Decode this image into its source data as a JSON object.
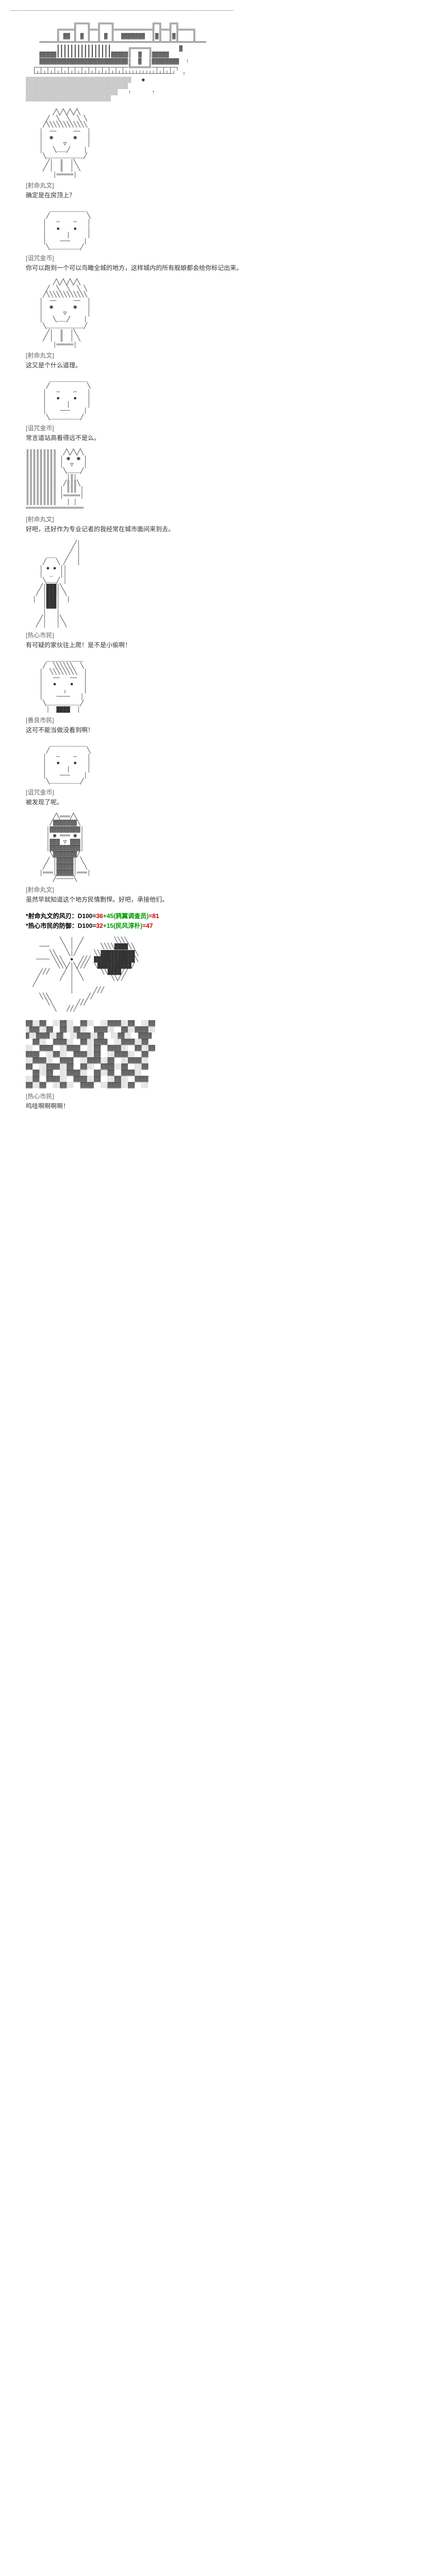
{
  "divider": "————————————————————————————————————————————————",
  "scenes": [
    {
      "art": "castle",
      "speaker": "[射命丸文]",
      "text": "确定是在房顶上？"
    },
    {
      "art": "coin1",
      "speaker": "[诅咒金币]",
      "text": "你可以跑到一个可以鸟瞰全城的地方，这样城内的所有舰娘都会给你标记出来。"
    },
    {
      "art": "aya1",
      "speaker": "[射命丸文]",
      "text": "这又是个什么道理。"
    },
    {
      "art": "coin2",
      "speaker": "[诅咒金币]",
      "text": "常言道站高看得远不是么。"
    },
    {
      "art": "aya2",
      "speaker": "[射命丸文]",
      "text": "好吧，还好作为专业记者的我经常在城市面间来到去。"
    },
    {
      "art": "citizen1",
      "speaker": "[热心市民]",
      "text": "有可疑的家伙往上爬！是不是小偷啊！"
    },
    {
      "art": "citizen2",
      "speaker": "[善良市民]",
      "text": "这可不能当做没看到啊！"
    },
    {
      "art": "coin3",
      "speaker": "[诅咒金币]",
      "text": "被发现了呢。"
    },
    {
      "art": "aya3",
      "speaker": "[射命丸文]",
      "text": "虽然早就知道这个地方民情剽悍。好吧，承接他们。"
    },
    {
      "art": "wind1",
      "speaker": "",
      "text": ""
    },
    {
      "art": "wind2",
      "speaker": "[热心市民]",
      "text": "呜哇啊啊啊啊！"
    }
  ],
  "rolls": [
    {
      "label": "*射命丸文的风刃：D100=",
      "base": "36",
      "mod": "+45(鸦翼调查员)",
      "result": "=81",
      "baseColor": "#cc0000",
      "modColor": "#009900",
      "resultColor": "#cc0000"
    },
    {
      "label": "*热心市民的防御：D100=",
      "base": "32",
      "mod": "+15(民风淳朴)",
      "result": "=47",
      "baseColor": "#cc0000",
      "modColor": "#009900",
      "resultColor": "#cc0000"
    }
  ],
  "ascii": {
    "castle": "              ╔═══╗  ╔═══╗           ╔═╗  ╔═╗\n         ╔════╣   ╠══╣   ╠═══════════╣ ╠══╣ ╠════╗\n         ║ ▓▓ ║ ▓ ║  ║ ▓ ║  ▓▓▓▓▓▓▓  ║▓║  ║▓║    ║\n    ═════╩════╩═══╩══╩═══╩═══════════╩═╩══╩═╩════╩═══\n         ┃┃┃┃┃┃┃┃┃┃┃┃┃┃┃┃     ╔═════╗        ▓\n    ▓▓▓▓▓┃┃┃┃┃┃┃┃┃┃┃┃┃┃┃┃▓▓▓▓▓║  ▓  ║▓▓▓▓▓\n    ▓▓▓▓▓▓▓▓▓▓▓▓▓▓▓▓▓▓▓▓▓▓▓▓▓▓║  ▓  ║▓▓▓▓▓▓▓▓  ↑\n  ┌─┬─┬─┬─┬─┬─┬─┬─┬─┬─┬─┬─┬─┬─╚═════╝─┬─┬─┬─┐\n  └┴┴┴┴┴┴┴┴┴┴┴┴┴┴┴┴┴┴┴┴┴┴┴┴┴┴┴┴┴┴┴┴┴┴┴┴┴┴┴┴┘  ↑\n▒▒▒▒▒▒▒▒▒▒▒▒▒▒▒▒▒▒▒▒▒▒▒▒▒▒▒▒▒▒▒   ◆\n▒▒▒▒▒▒▒▒▒▒▒▒▒▒▒▒▒▒▒▒▒▒▒▒▒▒▒▒▒▒\n▒▒▒▒▒▒▒▒▒▒▒▒▒▒▒▒▒▒▒▒▒▒▒▒▒▒▒   ↑      ↑\n▒▒▒▒▒▒▒▒▒▒▒▒▒▒▒▒▒▒▒▒▒▒▒▒▒",
    "aya_head": "        ╱╲╱╲╱╲╱╲\n      ╱  ╲  ╲  ╲ ╲\n     ╱╲╲╲╲╲╲╲╲╲╲╲╲\n    │  ──     ──  │\n    │  ◉      ◉   │\n    │      ▽      │\n    │   ╲___╱    │\n     ╲___________╱\n      ╱│  ║  │╲\n     ╱ │  ║  │ ╲\n        │═════│",
    "coin_face": "       ___________\n      ╱           ╲\n     │   ─    ─   │\n     │   ●    ●   │\n     │      │     │\n     │    ───    │\n      ╲_________╱",
    "aya_tall": "║║║║║║║║║  ╱╲╱╲╱╲\n║║║║║║║║║ │ ◉  ◉ │\n║║║║║║║║║ │  ▽   │\n║║║║║║║║║  ╲____╱\n║║║║║║║║║   │║│\n║║║║║║║║║  ╱║║║╲\n║║║║║║║║║ │ ║║║ │\n║║║║║║║║║ │═════│\n║║║║║║║║║   │ │\n═════════════════",
    "warrior": "              ╱│\n             ╱ │\n      ___   ╱  │\n     ╱   ╲ ╱   │\n    │ ● ● ││\n    │  _  ││\n     ╲___╱ │\n    ╱│███│╲\n   ╱ │███│ ╲\n  │  │███│  │\n     │███│\n     │   │\n    ╱│   │╲\n   ╱ │   │ ╲",
    "citizen_face": "      ___________\n     ╱  ╲╲╲╲╲╲  ╲\n    │  ╲╲╲╲╲╲╲╲  │\n    │   ──   ──  │\n    │   ●    ●   │\n    │      ╷     │\n    │    ────   │\n     ╲__________╱\n      │  ████  │",
    "aya_helm": "        ╱╲═══╱╲\n       ╱▓▓▓▓▓▓▓╲\n      │▓▓▓▓▓▓▓▓▓│\n      │ ◉ ═══ ◉ │\n      │▓▓▓ ▽ ▓▓▓│\n      │▓▓▓▓▓▓▓▓▓│\n       ╲▓▓▓▓▓▓▓╱\n      ╱ │▓▓▓▓▓│ ╲\n     ╱  │▓▓▓▓▓│  ╲\n    │═══│▓▓▓▓▓│═══│\n        ╱─────╲",
    "wind_swirl": "          ╲  │  ╱         ╲╲╲╲\n    ───    ╲ │ ╱      ╲╲╲╲████╲╲\n       ╲╲   ╲│╱     ╲╲██████████╲\n   ──── ╲╲╲  ●  ╱╱╱ ████████████╲\n         ╲╲╲╱│╲╱╱╱  ╲██████████╱\n    ╱╱╱    ╱ │ ╲      ╲╲████╱╱\n   ╱      ╱  │  ╲        ╲╲╱╱\n  ╱          │\n             │      ╱╱╱\n    ╲╲╲           ╱╱\n      ╲╲       ╱╱╱\n        ╲   ╱╱╱",
    "wind_blast": "▓▓░░▓▓  ░░▓▓░░  ▓▓░░  ░░▓▓▓▓░░▓▓  ░░▓▓\n░▓▓▓░░▓▓  ▓▓░░▓▓░░  ▓▓▓▓░░  ▓▓░░▓▓▓▓░░\n▓░░▓▓▓▓░░▓▓  ░░▓▓▓▓░░▓▓  ░░▓▓░░  ▓▓▓▓\n  ▓▓░░  ▓▓▓▓░░  ▓▓░░▓▓▓▓  ░░▓▓▓▓░░▓▓\n░░  ▓▓▓▓  ░░▓▓▓▓  ░░▓▓  ▓▓▓▓░░  ▓▓░░▓▓\n▓▓▓▓  ░░▓▓░░  ▓▓▓▓░░▓▓  ░░▓▓▓▓░░  ▓▓\n░░▓▓▓▓░░  ▓▓▓▓  ░░▓▓▓▓░░▓▓  ░░▓▓▓▓░░\n▓▓  ░░▓▓▓▓░░▓▓  ▓▓░░  ▓▓▓▓░░▓▓  ░░▓▓\n  ▓▓░░▓▓  ░░▓▓▓▓░░  ▓▓░░▓▓  ▓▓▓▓░░\n░░▓▓  ▓▓▓▓░░  ▓▓▓▓░░▓▓  ░░▓▓░░  ▓▓▓▓\n▓▓░░▓▓  ░░▓▓░░  ▓▓▓▓  ░░▓▓▓▓░░▓▓  ░░"
  }
}
